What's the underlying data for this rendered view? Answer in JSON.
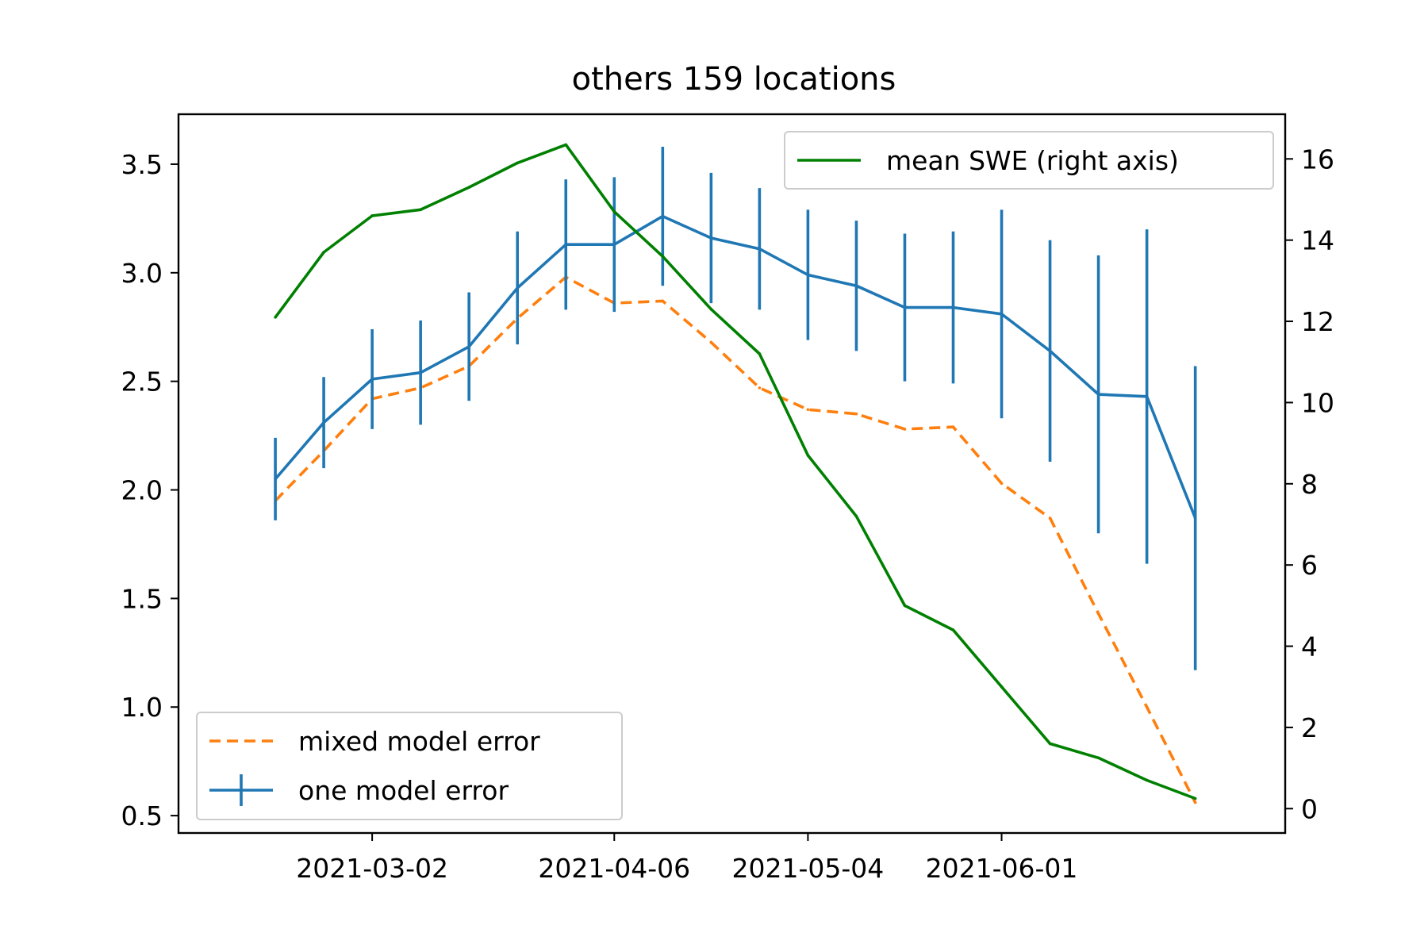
{
  "chart_data": {
    "type": "line",
    "title": "others 159 locations",
    "xlabel": "",
    "ylabel": "",
    "y2label": "",
    "x_ticks": [
      "2021-03-02",
      "2021-04-06",
      "2021-05-04",
      "2021-06-01"
    ],
    "y_ticks": [
      "0.5",
      "1.0",
      "1.5",
      "2.0",
      "2.5",
      "3.0",
      "3.5"
    ],
    "y2_ticks": [
      "0",
      "2",
      "4",
      "6",
      "8",
      "10",
      "12",
      "14",
      "16"
    ],
    "ylim": [
      0.42,
      3.73
    ],
    "y2lim": [
      -0.6,
      17.1
    ],
    "xlim": [
      "2021-02-02",
      "2021-07-12"
    ],
    "dates": [
      "2021-02-16",
      "2021-02-23",
      "2021-03-02",
      "2021-03-09",
      "2021-03-16",
      "2021-03-23",
      "2021-03-30",
      "2021-04-06",
      "2021-04-13",
      "2021-04-20",
      "2021-04-27",
      "2021-05-04",
      "2021-05-11",
      "2021-05-18",
      "2021-05-25",
      "2021-06-01",
      "2021-06-08",
      "2021-06-15",
      "2021-06-22",
      "2021-06-29"
    ],
    "series": [
      {
        "name": "mixed model error",
        "axis": "left",
        "style": "dashed",
        "color": "#ff7f0e",
        "values": [
          1.95,
          2.18,
          2.42,
          2.47,
          2.57,
          2.79,
          2.98,
          2.86,
          2.87,
          2.68,
          2.47,
          2.37,
          2.35,
          2.28,
          2.29,
          2.03,
          1.87,
          1.43,
          1.0,
          0.56
        ]
      },
      {
        "name": "one model error",
        "axis": "left",
        "style": "solid",
        "color": "#1f77b4",
        "values": [
          2.05,
          2.31,
          2.51,
          2.54,
          2.66,
          2.93,
          3.13,
          3.13,
          3.26,
          3.16,
          3.11,
          2.99,
          2.94,
          2.84,
          2.84,
          2.81,
          2.64,
          2.44,
          2.43,
          1.87
        ],
        "errors": [
          0.19,
          0.21,
          0.23,
          0.24,
          0.25,
          0.26,
          0.3,
          0.31,
          0.32,
          0.3,
          0.28,
          0.3,
          0.3,
          0.34,
          0.35,
          0.48,
          0.51,
          0.64,
          0.77,
          0.7
        ]
      },
      {
        "name": "mean SWE (right axis)",
        "axis": "right",
        "style": "solid",
        "color": "#008000",
        "values": [
          12.1,
          13.7,
          14.6,
          14.75,
          15.3,
          15.9,
          16.35,
          14.7,
          13.6,
          12.3,
          11.2,
          8.7,
          7.2,
          5.0,
          4.4,
          3.0,
          1.6,
          1.25,
          0.7,
          0.25
        ]
      }
    ],
    "legends": [
      {
        "placement": "upper-right",
        "entries": [
          "mean SWE (right axis)"
        ]
      },
      {
        "placement": "lower-left",
        "entries": [
          "mixed model error",
          "one model error"
        ]
      }
    ]
  }
}
